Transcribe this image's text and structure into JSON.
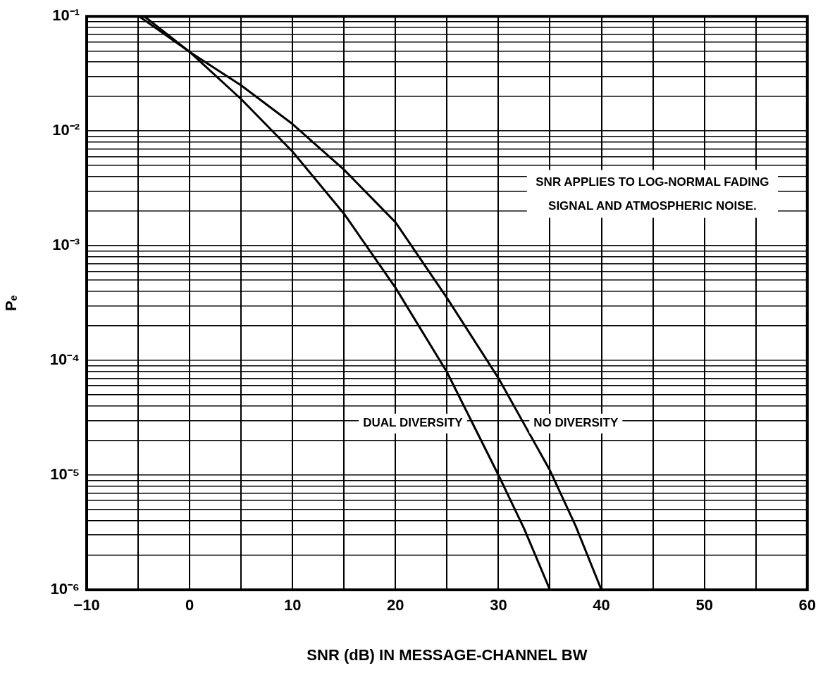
{
  "chart_data": {
    "type": "line",
    "xlabel": "SNR (dB) IN MESSAGE-CHANNEL BW",
    "ylabel": "Pₑ",
    "log": "y",
    "grid": true,
    "legend": false,
    "marker": "none",
    "line_style": "solid",
    "xlim": [
      -10,
      60
    ],
    "xticks": [
      -10,
      {
        "value": -5,
        "label": null
      },
      0,
      {
        "value": 5,
        "label": null
      },
      10,
      {
        "value": 15,
        "label": null
      },
      20,
      {
        "value": 25,
        "label": null
      },
      30,
      {
        "value": 35,
        "label": null
      },
      40,
      {
        "value": 45,
        "label": null
      },
      50,
      {
        "value": 55,
        "label": null
      },
      60
    ],
    "ylim": [
      1e-06,
      0.1
    ],
    "yticks": [
      {
        "value": 1e-06,
        "label": "10⁻⁶"
      },
      {
        "value": 2e-06,
        "label": null
      },
      {
        "value": 3e-06,
        "label": null
      },
      {
        "value": 4e-06,
        "label": null
      },
      {
        "value": 5e-06,
        "label": null
      },
      {
        "value": 6e-06,
        "label": null
      },
      {
        "value": 7e-06,
        "label": null
      },
      {
        "value": 8e-06,
        "label": null
      },
      {
        "value": 9e-06,
        "label": null
      },
      {
        "value": 1e-05,
        "label": "10⁻⁵"
      },
      {
        "value": 2e-05,
        "label": null
      },
      {
        "value": 3e-05,
        "label": null
      },
      {
        "value": 4e-05,
        "label": null
      },
      {
        "value": 5e-05,
        "label": null
      },
      {
        "value": 6e-05,
        "label": null
      },
      {
        "value": 7e-05,
        "label": null
      },
      {
        "value": 8e-05,
        "label": null
      },
      {
        "value": 9e-05,
        "label": null
      },
      {
        "value": 0.0001,
        "label": "10⁻⁴"
      },
      {
        "value": 0.0002,
        "label": null
      },
      {
        "value": 0.0003,
        "label": null
      },
      {
        "value": 0.0004,
        "label": null
      },
      {
        "value": 0.0005,
        "label": null
      },
      {
        "value": 0.0006,
        "label": null
      },
      {
        "value": 0.0007,
        "label": null
      },
      {
        "value": 0.0008,
        "label": null
      },
      {
        "value": 0.0009,
        "label": null
      },
      {
        "value": 0.001,
        "label": "10⁻³"
      },
      {
        "value": 0.002,
        "label": null
      },
      {
        "value": 0.003,
        "label": null
      },
      {
        "value": 0.004,
        "label": null
      },
      {
        "value": 0.005,
        "label": null
      },
      {
        "value": 0.006,
        "label": null
      },
      {
        "value": 0.007,
        "label": null
      },
      {
        "value": 0.008,
        "label": null
      },
      {
        "value": 0.009,
        "label": null
      },
      {
        "value": 0.01,
        "label": "10⁻²"
      },
      {
        "value": 0.02,
        "label": null
      },
      {
        "value": 0.03,
        "label": null
      },
      {
        "value": 0.04,
        "label": null
      },
      {
        "value": 0.05,
        "label": null
      },
      {
        "value": 0.06,
        "label": null
      },
      {
        "value": 0.07,
        "label": null
      },
      {
        "value": 0.08,
        "label": null
      },
      {
        "value": 0.09,
        "label": null
      },
      {
        "value": 0.1,
        "label": "10⁻¹"
      }
    ],
    "series": [
      {
        "name": "DUAL DIVERSITY",
        "color": "#000000",
        "x": [
          -4.4,
          0,
          5,
          10,
          15,
          20,
          25,
          30,
          32.5,
          35
        ],
        "values": [
          0.1,
          0.049,
          0.019,
          0.0066,
          0.0019,
          0.00043,
          7.9e-05,
          1e-05,
          3.4e-06,
          1e-06
        ]
      },
      {
        "name": "NO DIVERSITY",
        "color": "#000000",
        "x": [
          -4.9,
          0,
          5,
          10,
          15,
          20,
          25,
          30,
          35,
          37.5,
          40
        ],
        "values": [
          0.1,
          0.049,
          0.025,
          0.0115,
          0.0046,
          0.0016,
          0.00035,
          7e-05,
          1.1e-05,
          3.6e-06,
          1e-06
        ]
      }
    ],
    "annotations": [
      "SNR APPLIES TO LOG-NORMAL FADING SIGNAL AND ATMOSPHERIC NOISE."
    ]
  }
}
